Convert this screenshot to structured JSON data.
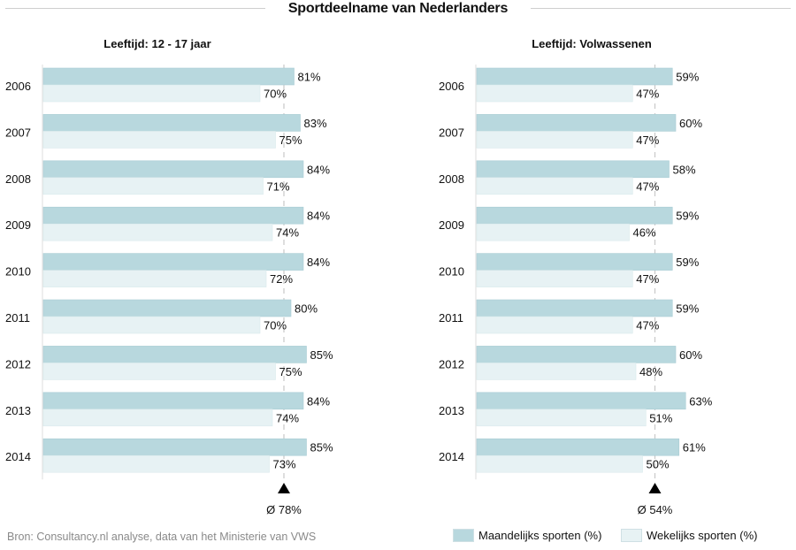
{
  "title": "Sportdeelname van Nederlanders",
  "source": "Bron: Consultancy.nl analyse, data van het Ministerie van VWS",
  "colors": {
    "maandelijks": "#b8d8de",
    "wekelijks": "#e7f2f4",
    "avg_line": "#c8c8c8",
    "marker": "#000000"
  },
  "legend": {
    "maandelijks": "Maandelijks sporten (%)",
    "wekelijks": "Wekelijks sporten (%)"
  },
  "chart_data": [
    {
      "type": "bar",
      "orientation": "horizontal",
      "title": "Leeftijd: 12 - 17 jaar",
      "categories": [
        "2006",
        "2007",
        "2008",
        "2009",
        "2010",
        "2011",
        "2012",
        "2013",
        "2014"
      ],
      "series": [
        {
          "name": "Maandelijks sporten (%)",
          "values": [
            81,
            83,
            84,
            84,
            84,
            80,
            85,
            84,
            85
          ]
        },
        {
          "name": "Wekelijks sporten (%)",
          "values": [
            70,
            75,
            71,
            74,
            72,
            70,
            75,
            74,
            73
          ]
        }
      ],
      "value_suffix": "%",
      "average": 78,
      "average_label": "Ø 78%"
    },
    {
      "type": "bar",
      "orientation": "horizontal",
      "title": "Leeftijd: Volwassenen",
      "categories": [
        "2006",
        "2007",
        "2008",
        "2009",
        "2010",
        "2011",
        "2012",
        "2013",
        "2014"
      ],
      "series": [
        {
          "name": "Maandelijks sporten (%)",
          "values": [
            59,
            60,
            58,
            59,
            59,
            59,
            60,
            63,
            61
          ]
        },
        {
          "name": "Wekelijks sporten (%)",
          "values": [
            47,
            47,
            47,
            46,
            47,
            47,
            48,
            51,
            50
          ]
        }
      ],
      "value_suffix": "%",
      "average": 54,
      "average_label": "Ø 54%"
    }
  ]
}
